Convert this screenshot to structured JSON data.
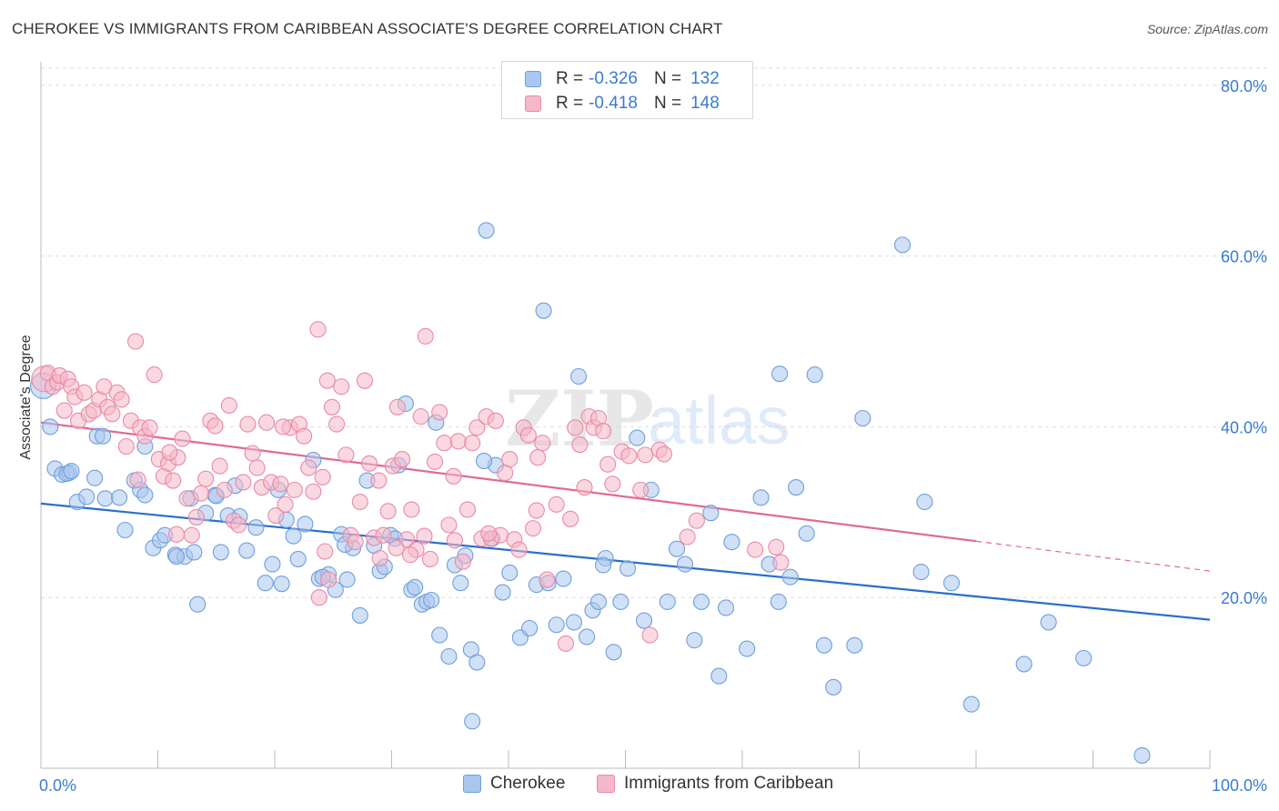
{
  "title": "CHEROKEE VS IMMIGRANTS FROM CARIBBEAN ASSOCIATE'S DEGREE CORRELATION CHART",
  "source": "Source: ZipAtlas.com",
  "watermark": {
    "zip": "ZIP",
    "atlas": "atlas"
  },
  "legend": {
    "rows": [
      {
        "r_label": "R =",
        "r_value": "-0.326",
        "n_label": "N =",
        "n_value": "132"
      },
      {
        "r_label": "R =",
        "r_value": "-0.418",
        "n_label": "N =",
        "n_value": "148"
      }
    ]
  },
  "bottom_legend": [
    "Cherokee",
    "Immigrants from Caribbean"
  ],
  "colors": {
    "blue_fill": "#a9c7ee",
    "blue_stroke": "#6f9fdc",
    "blue_line": "#2a6fcf",
    "pink_fill": "#f5b8ca",
    "pink_stroke": "#e98aa6",
    "pink_line": "#e06a93",
    "axis_text_blue": "#3a7bd5",
    "grid": "#dddddd"
  },
  "chart_data": {
    "type": "scatter",
    "title": "CHEROKEE VS IMMIGRANTS FROM CARIBBEAN ASSOCIATE'S DEGREE CORRELATION CHART",
    "xlabel": "",
    "ylabel": "Associate's Degree",
    "x_tick_labels": [
      "0.0%",
      "100.0%"
    ],
    "y_tick_labels": [
      "20.0%",
      "40.0%",
      "60.0%",
      "80.0%"
    ],
    "y_ticks": [
      20,
      40,
      60,
      80
    ],
    "xlim": [
      0,
      100
    ],
    "ylim": [
      0,
      82
    ],
    "grid": true,
    "legend_placement": "top-center",
    "series": [
      {
        "name": "Cherokee",
        "r": -0.326,
        "n": 132,
        "trend": {
          "x": [
            0,
            100
          ],
          "y": [
            31.0,
            17.4
          ]
        },
        "points": [
          [
            0.2,
            44.8
          ],
          [
            0.8,
            40.0
          ],
          [
            1.2,
            35.1
          ],
          [
            1.8,
            34.4
          ],
          [
            2.4,
            34.6
          ],
          [
            3.1,
            31.2
          ],
          [
            3.9,
            31.8
          ],
          [
            4.8,
            38.9
          ],
          [
            5.5,
            31.6
          ],
          [
            4.6,
            34.0
          ],
          [
            6.7,
            31.7
          ],
          [
            7.2,
            27.9
          ],
          [
            8.0,
            33.7
          ],
          [
            8.5,
            32.6
          ],
          [
            8.9,
            37.7
          ],
          [
            9.6,
            25.8
          ],
          [
            10.2,
            26.7
          ],
          [
            10.6,
            27.3
          ],
          [
            11.5,
            25.0
          ],
          [
            12.3,
            24.8
          ],
          [
            12.8,
            31.6
          ],
          [
            13.1,
            25.3
          ],
          [
            13.4,
            19.2
          ],
          [
            14.1,
            29.9
          ],
          [
            14.9,
            32.0
          ],
          [
            15.4,
            25.3
          ],
          [
            16.0,
            29.6
          ],
          [
            16.6,
            33.1
          ],
          [
            17.0,
            29.5
          ],
          [
            17.6,
            25.5
          ],
          [
            18.4,
            28.2
          ],
          [
            19.2,
            21.7
          ],
          [
            19.8,
            23.9
          ],
          [
            20.3,
            32.6
          ],
          [
            21.0,
            29.1
          ],
          [
            21.6,
            27.2
          ],
          [
            22.0,
            24.5
          ],
          [
            22.6,
            28.6
          ],
          [
            23.3,
            36.1
          ],
          [
            23.8,
            22.2
          ],
          [
            24.6,
            22.7
          ],
          [
            25.2,
            20.9
          ],
          [
            25.7,
            27.4
          ],
          [
            26.2,
            22.1
          ],
          [
            26.7,
            25.8
          ],
          [
            27.3,
            17.9
          ],
          [
            27.9,
            33.7
          ],
          [
            28.5,
            26.1
          ],
          [
            29.0,
            23.1
          ],
          [
            29.4,
            23.6
          ],
          [
            29.9,
            27.3
          ],
          [
            30.6,
            35.5
          ],
          [
            31.2,
            42.7
          ],
          [
            31.7,
            20.9
          ],
          [
            32.0,
            21.2
          ],
          [
            32.6,
            19.2
          ],
          [
            33.0,
            19.5
          ],
          [
            33.4,
            19.7
          ],
          [
            33.8,
            40.5
          ],
          [
            34.1,
            15.6
          ],
          [
            34.9,
            13.1
          ],
          [
            35.4,
            23.8
          ],
          [
            35.9,
            21.7
          ],
          [
            36.3,
            24.9
          ],
          [
            36.8,
            13.9
          ],
          [
            37.3,
            12.4
          ],
          [
            36.9,
            5.5
          ],
          [
            38.1,
            63.0
          ],
          [
            38.6,
            26.9
          ],
          [
            38.9,
            35.5
          ],
          [
            39.5,
            20.6
          ],
          [
            40.1,
            22.9
          ],
          [
            41.0,
            15.3
          ],
          [
            41.8,
            16.4
          ],
          [
            42.4,
            21.5
          ],
          [
            43.4,
            21.7
          ],
          [
            43.0,
            53.6
          ],
          [
            44.1,
            16.8
          ],
          [
            44.7,
            22.2
          ],
          [
            45.6,
            17.1
          ],
          [
            46.0,
            45.9
          ],
          [
            46.7,
            15.4
          ],
          [
            47.2,
            18.5
          ],
          [
            47.7,
            19.5
          ],
          [
            48.3,
            24.6
          ],
          [
            49.0,
            13.6
          ],
          [
            49.6,
            19.5
          ],
          [
            50.2,
            23.4
          ],
          [
            51.0,
            38.7
          ],
          [
            51.6,
            17.3
          ],
          [
            52.2,
            32.6
          ],
          [
            53.6,
            19.5
          ],
          [
            54.4,
            25.7
          ],
          [
            55.1,
            23.9
          ],
          [
            55.9,
            15.0
          ],
          [
            56.5,
            19.5
          ],
          [
            57.3,
            29.9
          ],
          [
            58.0,
            10.8
          ],
          [
            58.6,
            18.8
          ],
          [
            59.1,
            26.5
          ],
          [
            60.4,
            14.0
          ],
          [
            61.6,
            31.7
          ],
          [
            62.3,
            23.9
          ],
          [
            63.1,
            19.5
          ],
          [
            64.1,
            22.4
          ],
          [
            64.6,
            32.9
          ],
          [
            65.5,
            27.5
          ],
          [
            66.2,
            46.1
          ],
          [
            67.0,
            14.4
          ],
          [
            67.8,
            9.5
          ],
          [
            70.3,
            41.0
          ],
          [
            69.6,
            14.4
          ],
          [
            73.7,
            61.3
          ],
          [
            75.6,
            31.2
          ],
          [
            75.3,
            23.0
          ],
          [
            77.9,
            21.7
          ],
          [
            79.6,
            7.5
          ],
          [
            84.1,
            12.2
          ],
          [
            86.2,
            17.1
          ],
          [
            89.2,
            12.9
          ],
          [
            94.2,
            1.5
          ],
          [
            63.2,
            46.2
          ],
          [
            37.9,
            36.0
          ],
          [
            11.6,
            24.8
          ],
          [
            8.9,
            32.0
          ],
          [
            20.6,
            21.6
          ],
          [
            24.1,
            22.4
          ],
          [
            26.0,
            26.2
          ],
          [
            30.3,
            26.9
          ],
          [
            48.1,
            23.8
          ],
          [
            5.3,
            38.9
          ],
          [
            15.0,
            31.9
          ],
          [
            2.2,
            34.5
          ],
          [
            2.6,
            34.8
          ]
        ]
      },
      {
        "name": "Immigrants from Caribbean",
        "r": -0.418,
        "n": 148,
        "trend": {
          "x": [
            0,
            80
          ],
          "y": [
            40.5,
            26.6
          ]
        },
        "trend_dashed": {
          "x": [
            80,
            100
          ],
          "y": [
            26.6,
            23.1
          ]
        },
        "points": [
          [
            0.3,
            45.6
          ],
          [
            0.6,
            46.3
          ],
          [
            1.0,
            44.7
          ],
          [
            1.4,
            45.2
          ],
          [
            1.6,
            46.0
          ],
          [
            2.0,
            41.9
          ],
          [
            2.3,
            45.6
          ],
          [
            2.6,
            44.7
          ],
          [
            2.9,
            43.5
          ],
          [
            3.2,
            40.7
          ],
          [
            3.7,
            44.0
          ],
          [
            4.1,
            41.5
          ],
          [
            4.5,
            41.9
          ],
          [
            5.0,
            43.2
          ],
          [
            5.4,
            44.7
          ],
          [
            5.7,
            42.3
          ],
          [
            6.1,
            41.5
          ],
          [
            6.5,
            44.0
          ],
          [
            6.9,
            43.2
          ],
          [
            7.3,
            37.7
          ],
          [
            7.7,
            40.7
          ],
          [
            8.1,
            50.0
          ],
          [
            8.5,
            39.9
          ],
          [
            8.9,
            38.9
          ],
          [
            9.3,
            39.9
          ],
          [
            9.7,
            46.1
          ],
          [
            10.1,
            36.2
          ],
          [
            10.5,
            34.2
          ],
          [
            10.9,
            35.7
          ],
          [
            11.3,
            33.7
          ],
          [
            11.7,
            36.4
          ],
          [
            12.1,
            38.6
          ],
          [
            12.5,
            31.6
          ],
          [
            12.9,
            27.3
          ],
          [
            13.3,
            29.4
          ],
          [
            13.7,
            32.2
          ],
          [
            14.1,
            33.9
          ],
          [
            14.5,
            40.7
          ],
          [
            14.9,
            40.1
          ],
          [
            15.3,
            35.4
          ],
          [
            15.7,
            32.6
          ],
          [
            16.1,
            42.5
          ],
          [
            16.5,
            29.0
          ],
          [
            16.9,
            28.5
          ],
          [
            17.3,
            33.5
          ],
          [
            17.7,
            40.3
          ],
          [
            18.1,
            36.9
          ],
          [
            18.5,
            35.2
          ],
          [
            18.9,
            32.9
          ],
          [
            19.3,
            40.5
          ],
          [
            19.7,
            33.5
          ],
          [
            20.1,
            29.6
          ],
          [
            20.5,
            33.3
          ],
          [
            20.9,
            30.9
          ],
          [
            21.3,
            39.9
          ],
          [
            21.7,
            32.6
          ],
          [
            22.1,
            40.3
          ],
          [
            22.5,
            38.9
          ],
          [
            22.9,
            35.2
          ],
          [
            23.3,
            32.4
          ],
          [
            23.7,
            51.4
          ],
          [
            24.1,
            34.1
          ],
          [
            24.5,
            45.4
          ],
          [
            24.9,
            42.3
          ],
          [
            25.3,
            40.3
          ],
          [
            25.7,
            44.7
          ],
          [
            26.1,
            36.7
          ],
          [
            26.5,
            27.3
          ],
          [
            26.9,
            26.5
          ],
          [
            27.3,
            31.2
          ],
          [
            27.7,
            45.4
          ],
          [
            28.1,
            35.7
          ],
          [
            28.5,
            27.0
          ],
          [
            28.9,
            33.7
          ],
          [
            29.3,
            27.3
          ],
          [
            29.7,
            30.1
          ],
          [
            30.1,
            35.4
          ],
          [
            30.5,
            42.3
          ],
          [
            30.9,
            36.2
          ],
          [
            31.3,
            26.8
          ],
          [
            31.7,
            30.3
          ],
          [
            32.1,
            25.6
          ],
          [
            32.5,
            41.2
          ],
          [
            32.9,
            50.6
          ],
          [
            33.3,
            24.5
          ],
          [
            33.7,
            35.9
          ],
          [
            34.1,
            41.7
          ],
          [
            34.5,
            38.1
          ],
          [
            34.9,
            28.5
          ],
          [
            35.3,
            34.2
          ],
          [
            35.7,
            38.3
          ],
          [
            36.1,
            24.2
          ],
          [
            36.5,
            30.3
          ],
          [
            36.9,
            38.1
          ],
          [
            37.3,
            39.9
          ],
          [
            37.7,
            26.9
          ],
          [
            38.1,
            41.2
          ],
          [
            38.5,
            26.9
          ],
          [
            38.9,
            40.7
          ],
          [
            39.3,
            27.3
          ],
          [
            39.7,
            34.6
          ],
          [
            40.1,
            36.2
          ],
          [
            40.5,
            26.8
          ],
          [
            40.9,
            25.6
          ],
          [
            41.3,
            39.9
          ],
          [
            41.7,
            39.0
          ],
          [
            42.1,
            28.1
          ],
          [
            42.5,
            36.4
          ],
          [
            42.9,
            38.1
          ],
          [
            43.3,
            22.1
          ],
          [
            44.1,
            30.9
          ],
          [
            44.9,
            14.6
          ],
          [
            45.3,
            29.2
          ],
          [
            45.7,
            39.9
          ],
          [
            46.1,
            37.9
          ],
          [
            46.5,
            32.9
          ],
          [
            46.9,
            41.2
          ],
          [
            47.3,
            39.9
          ],
          [
            47.7,
            41.0
          ],
          [
            48.1,
            39.5
          ],
          [
            48.5,
            35.6
          ],
          [
            48.9,
            33.3
          ],
          [
            49.7,
            37.1
          ],
          [
            50.3,
            36.6
          ],
          [
            51.3,
            32.6
          ],
          [
            51.7,
            36.7
          ],
          [
            52.1,
            15.6
          ],
          [
            52.9,
            37.3
          ],
          [
            53.3,
            36.8
          ],
          [
            55.3,
            27.1
          ],
          [
            56.1,
            29.0
          ],
          [
            61.1,
            25.6
          ],
          [
            62.9,
            25.9
          ],
          [
            63.3,
            24.1
          ],
          [
            42.4,
            30.2
          ],
          [
            20.7,
            40.0
          ],
          [
            38.3,
            27.5
          ],
          [
            32.8,
            27.2
          ],
          [
            24.3,
            25.4
          ],
          [
            8.3,
            33.8
          ],
          [
            11.0,
            37.0
          ],
          [
            29.0,
            24.6
          ],
          [
            30.4,
            25.8
          ],
          [
            23.8,
            20.0
          ],
          [
            24.6,
            22.1
          ],
          [
            11.6,
            27.4
          ],
          [
            35.4,
            26.7
          ],
          [
            31.6,
            25.0
          ]
        ]
      }
    ]
  }
}
